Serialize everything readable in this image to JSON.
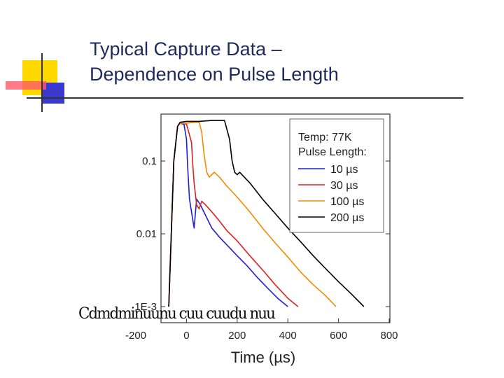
{
  "slide": {
    "title_line1": "Typical Capture Data –",
    "title_line2": "Dependence on Pulse Length"
  },
  "overlay_text": "Cdmdminuunu cuu cuudu nuu",
  "chart_data": {
    "type": "line",
    "title": "",
    "xlabel": "Time (µs)",
    "ylabel": "",
    "xlim": [
      -200,
      800
    ],
    "ylim": [
      0.001,
      0.5
    ],
    "yscale": "log",
    "x_ticks": [
      -200,
      0,
      200,
      400,
      600,
      800
    ],
    "x_tick_labels": [
      "-200",
      "0",
      "200",
      "400",
      "600",
      "800"
    ],
    "y_ticks": [
      0.001,
      0.01,
      0.1
    ],
    "y_tick_labels": [
      "1E-3",
      "0.01",
      "0.1"
    ],
    "grid": false,
    "legend": {
      "placement": "top-right",
      "header_line1": "Temp: 77K",
      "header_line2": "Pulse Length:"
    },
    "series": [
      {
        "name": "10 µs",
        "color": "#1f1fd6",
        "x": [
          -70,
          -50,
          -35,
          -25,
          -10,
          0,
          5,
          12,
          20,
          30,
          40,
          55,
          75,
          100,
          130,
          160,
          200,
          240,
          280,
          320,
          360,
          400
        ],
        "y": [
          0.001,
          0.1,
          0.3,
          0.33,
          0.32,
          0.2,
          0.08,
          0.03,
          0.02,
          0.012,
          0.03,
          0.025,
          0.018,
          0.012,
          0.009,
          0.007,
          0.005,
          0.0036,
          0.0025,
          0.0018,
          0.0013,
          0.001
        ]
      },
      {
        "name": "30 µs",
        "color": "#e02020",
        "x": [
          -70,
          -50,
          -35,
          -25,
          -10,
          0,
          5,
          20,
          25,
          30,
          40,
          50,
          60,
          75,
          100,
          130,
          160,
          200,
          250,
          300,
          350,
          400,
          440
        ],
        "y": [
          0.001,
          0.1,
          0.3,
          0.33,
          0.33,
          0.32,
          0.28,
          0.18,
          0.09,
          0.05,
          0.025,
          0.022,
          0.028,
          0.025,
          0.02,
          0.015,
          0.011,
          0.008,
          0.005,
          0.0032,
          0.002,
          0.0013,
          0.001
        ]
      },
      {
        "name": "100 µs",
        "color": "#f08c00",
        "x": [
          -70,
          -50,
          -35,
          -25,
          0,
          30,
          50,
          60,
          70,
          80,
          90,
          100,
          110,
          130,
          160,
          200,
          250,
          300,
          350,
          400,
          450,
          500,
          550,
          590
        ],
        "y": [
          0.001,
          0.1,
          0.3,
          0.33,
          0.33,
          0.34,
          0.34,
          0.25,
          0.12,
          0.07,
          0.06,
          0.065,
          0.07,
          0.06,
          0.045,
          0.032,
          0.02,
          0.012,
          0.0075,
          0.0048,
          0.003,
          0.002,
          0.0014,
          0.001
        ]
      },
      {
        "name": "200 µs",
        "color": "#000000",
        "x": [
          -70,
          -50,
          -35,
          -25,
          0,
          50,
          100,
          150,
          170,
          180,
          190,
          200,
          210,
          250,
          300,
          350,
          400,
          450,
          500,
          550,
          600,
          650,
          700
        ],
        "y": [
          0.001,
          0.1,
          0.3,
          0.34,
          0.35,
          0.35,
          0.36,
          0.36,
          0.2,
          0.1,
          0.07,
          0.065,
          0.07,
          0.05,
          0.03,
          0.019,
          0.012,
          0.0078,
          0.005,
          0.0033,
          0.0022,
          0.0015,
          0.001
        ]
      }
    ]
  }
}
